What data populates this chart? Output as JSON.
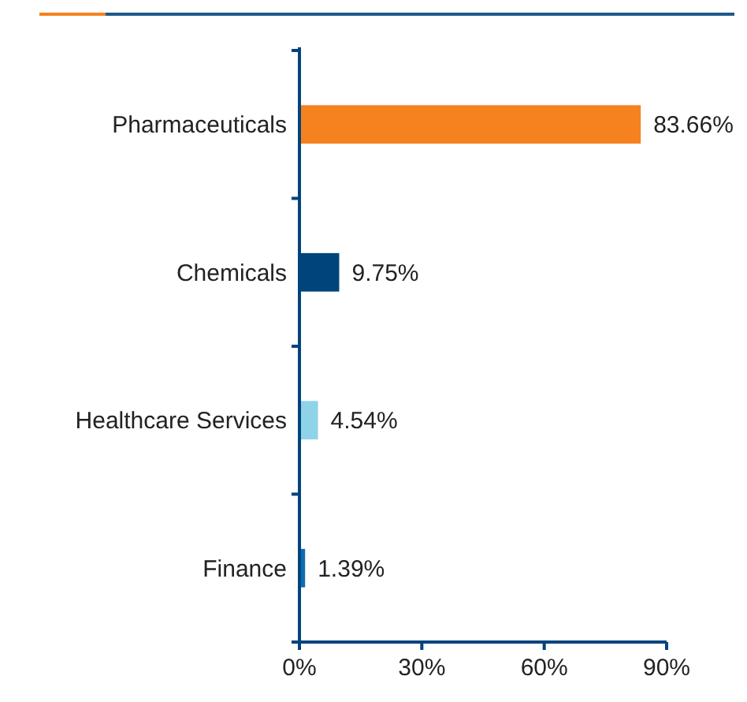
{
  "chart_data": {
    "type": "bar",
    "orientation": "horizontal",
    "categories": [
      "Pharmaceuticals",
      "Chemicals",
      "Healthcare Services",
      "Finance"
    ],
    "values": [
      83.66,
      9.75,
      4.54,
      1.39
    ],
    "colors": [
      "#f5821f",
      "#00447c",
      "#8fd3e8",
      "#0a6eb4"
    ],
    "value_labels": [
      "83.66%",
      "9.75%",
      "4.54%",
      "1.39%"
    ],
    "xlim": [
      0,
      90
    ],
    "xticks": [
      {
        "value": 0,
        "label": "0%"
      },
      {
        "value": 30,
        "label": "30%"
      },
      {
        "value": 60,
        "label": "60%"
      },
      {
        "value": 90,
        "label": "90%"
      }
    ],
    "grid": false
  }
}
